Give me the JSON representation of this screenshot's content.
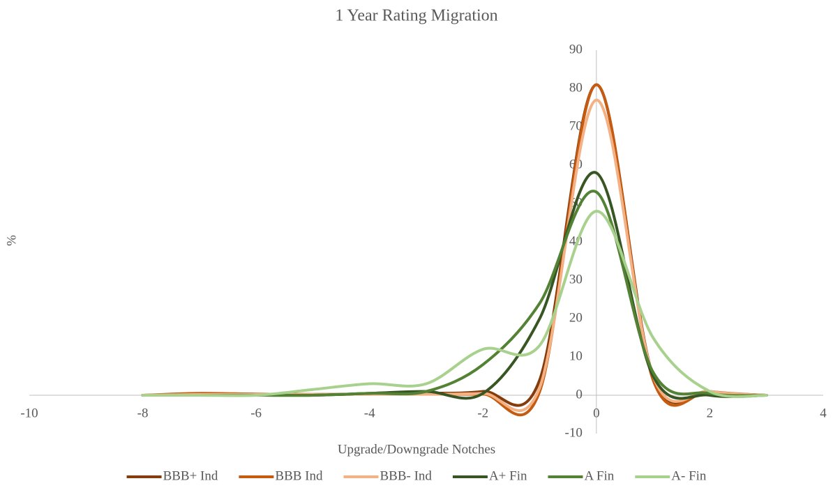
{
  "chart_data": {
    "type": "line",
    "smooth": true,
    "title": "1 Year Rating Migration",
    "x_label": "Upgrade/Downgrade Notches",
    "y_label": "%",
    "x": [
      -8,
      -7,
      -6,
      -5,
      -4,
      -3,
      -2,
      -1,
      0,
      1,
      2,
      3
    ],
    "series": [
      {
        "name": "BBB+ Ind",
        "color": "#843c0c",
        "values": [
          0,
          0.3,
          0.3,
          0.2,
          0.3,
          0.5,
          1,
          4,
          81,
          5,
          1,
          0
        ]
      },
      {
        "name": "BBB Ind",
        "color": "#c55a11",
        "values": [
          0,
          0.5,
          0.3,
          0.2,
          0.3,
          0.3,
          0.3,
          1,
          81,
          4,
          1,
          0
        ]
      },
      {
        "name": "BBB- Ind",
        "color": "#f4b183",
        "values": [
          0,
          0.2,
          0.2,
          0.2,
          0.3,
          0.3,
          0.5,
          2,
          77,
          5,
          1,
          0
        ]
      },
      {
        "name": "A+ Fin",
        "color": "#375623",
        "values": [
          0,
          0,
          0,
          0,
          0.5,
          1,
          0.5,
          20,
          58,
          5,
          0,
          0
        ]
      },
      {
        "name": "A Fin",
        "color": "#548235",
        "values": [
          0,
          0,
          0,
          0,
          0.5,
          1,
          8,
          24,
          53,
          6,
          0.5,
          0
        ]
      },
      {
        "name": "A- Fin",
        "color": "#a9d18e",
        "values": [
          0,
          0,
          0,
          1.5,
          3,
          3,
          12,
          13,
          48,
          15,
          1,
          0
        ]
      }
    ],
    "xlim": [
      -10,
      4
    ],
    "xticks": [
      -10,
      -8,
      -6,
      -4,
      -2,
      0,
      2,
      4
    ],
    "ylim": [
      -10,
      90
    ],
    "yticks": [
      -10,
      0,
      10,
      20,
      30,
      40,
      50,
      60,
      70,
      80,
      90
    ],
    "grid": false,
    "legend": "bottom"
  }
}
